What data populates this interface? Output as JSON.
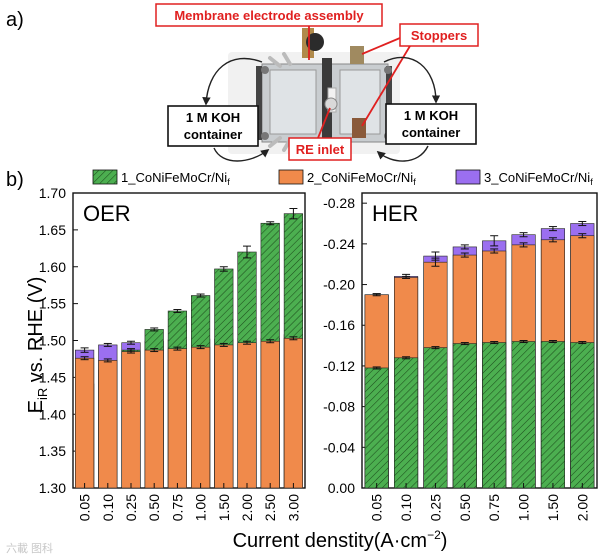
{
  "panel_a": {
    "label": "a)",
    "callouts": {
      "mea": "Membrane electrode assembly",
      "stoppers": "Stoppers",
      "re_inlet": "RE inlet"
    },
    "containers": {
      "left": [
        "1 M KOH",
        "container"
      ],
      "right": [
        "1 M KOH",
        "container"
      ]
    }
  },
  "panel_b": {
    "label": "b)"
  },
  "legend": [
    {
      "name": "1_CoNiFeMoCr/Ni",
      "sub": "f",
      "color": "#4caf50"
    },
    {
      "name": "2_CoNiFeMoCr/Ni",
      "sub": "f",
      "color": "#f08a4b"
    },
    {
      "name": "3_CoNiFeMoCr/Ni",
      "sub": "f",
      "color": "#9b6ff0"
    }
  ],
  "colors": {
    "green": "#4caf50",
    "orange": "#f08a4b",
    "purple": "#9b6ff0",
    "red": "#e02020"
  },
  "xlabel": "Current denstity(A·cm",
  "xlabel_sup": "−2",
  "xlabel_end": ")",
  "ylabel": "E",
  "ylabel_sub": "iR",
  "ylabel_rest": " vs. RHE (V)",
  "watermark": "六載 图科",
  "chart_data": [
    {
      "type": "bar",
      "title": "OER",
      "categories": [
        "0.05",
        "0.10",
        "0.25",
        "0.50",
        "0.75",
        "1.00",
        "1.50",
        "2.00",
        "2.50",
        "3.00"
      ],
      "ylim": [
        1.3,
        1.7
      ],
      "yticks": [
        "1.30",
        "1.35",
        "1.40",
        "1.45",
        "1.50",
        "1.55",
        "1.60",
        "1.65",
        "1.70"
      ],
      "series": [
        {
          "name": "3_CoNiFeMoCr/Nif",
          "values": [
            1.487,
            1.494,
            1.497,
            1.499,
            1.501,
            1.502,
            1.502,
            1.503,
            1.503,
            1.508
          ],
          "err": [
            0.003,
            0.002,
            0.002,
            0.002,
            0.002,
            0.002,
            0.002,
            0.002,
            0.002,
            0.002
          ]
        },
        {
          "name": "1_CoNiFeMoCr/Nif",
          "values": [
            1.441,
            1.46,
            1.487,
            1.515,
            1.54,
            1.561,
            1.597,
            1.62,
            1.659,
            1.672
          ],
          "err": [
            0.002,
            0.002,
            0.002,
            0.002,
            0.002,
            0.002,
            0.003,
            0.008,
            0.002,
            0.007
          ]
        },
        {
          "name": "2_CoNiFeMoCr/Nif",
          "values": [
            1.476,
            1.473,
            1.485,
            1.487,
            1.489,
            1.491,
            1.494,
            1.497,
            1.499,
            1.503
          ],
          "err": [
            0.002,
            0.002,
            0.002,
            0.002,
            0.002,
            0.002,
            0.002,
            0.002,
            0.002,
            0.002
          ]
        }
      ]
    },
    {
      "type": "bar",
      "title": "HER",
      "categories": [
        "0.05",
        "0.10",
        "0.25",
        "0.50",
        "0.75",
        "1.00",
        "1.50",
        "2.00"
      ],
      "ylim": [
        0.0,
        -0.29
      ],
      "yticks": [
        "0.00",
        "-0.04",
        "-0.08",
        "-0.12",
        "-0.16",
        "-0.20",
        "-0.24",
        "-0.28"
      ],
      "series": [
        {
          "name": "3_CoNiFeMoCr/Nif",
          "values": [
            -0.19,
            -0.208,
            -0.228,
            -0.237,
            -0.243,
            -0.249,
            -0.255,
            -0.26
          ],
          "err": [
            0.001,
            0.002,
            0.004,
            0.002,
            0.005,
            0.002,
            0.002,
            0.002
          ]
        },
        {
          "name": "2_CoNiFeMoCr/Nif",
          "values": [
            -0.19,
            -0.207,
            -0.222,
            -0.229,
            -0.233,
            -0.239,
            -0.244,
            -0.248
          ],
          "err": [
            0.001,
            0.001,
            0.004,
            0.002,
            0.002,
            0.002,
            0.002,
            0.002
          ]
        },
        {
          "name": "1_CoNiFeMoCr/Nif",
          "values": [
            -0.118,
            -0.128,
            -0.138,
            -0.142,
            -0.143,
            -0.144,
            -0.144,
            -0.143
          ],
          "err": [
            0.001,
            0.001,
            0.001,
            0.001,
            0.001,
            0.001,
            0.001,
            0.001
          ]
        }
      ]
    }
  ]
}
